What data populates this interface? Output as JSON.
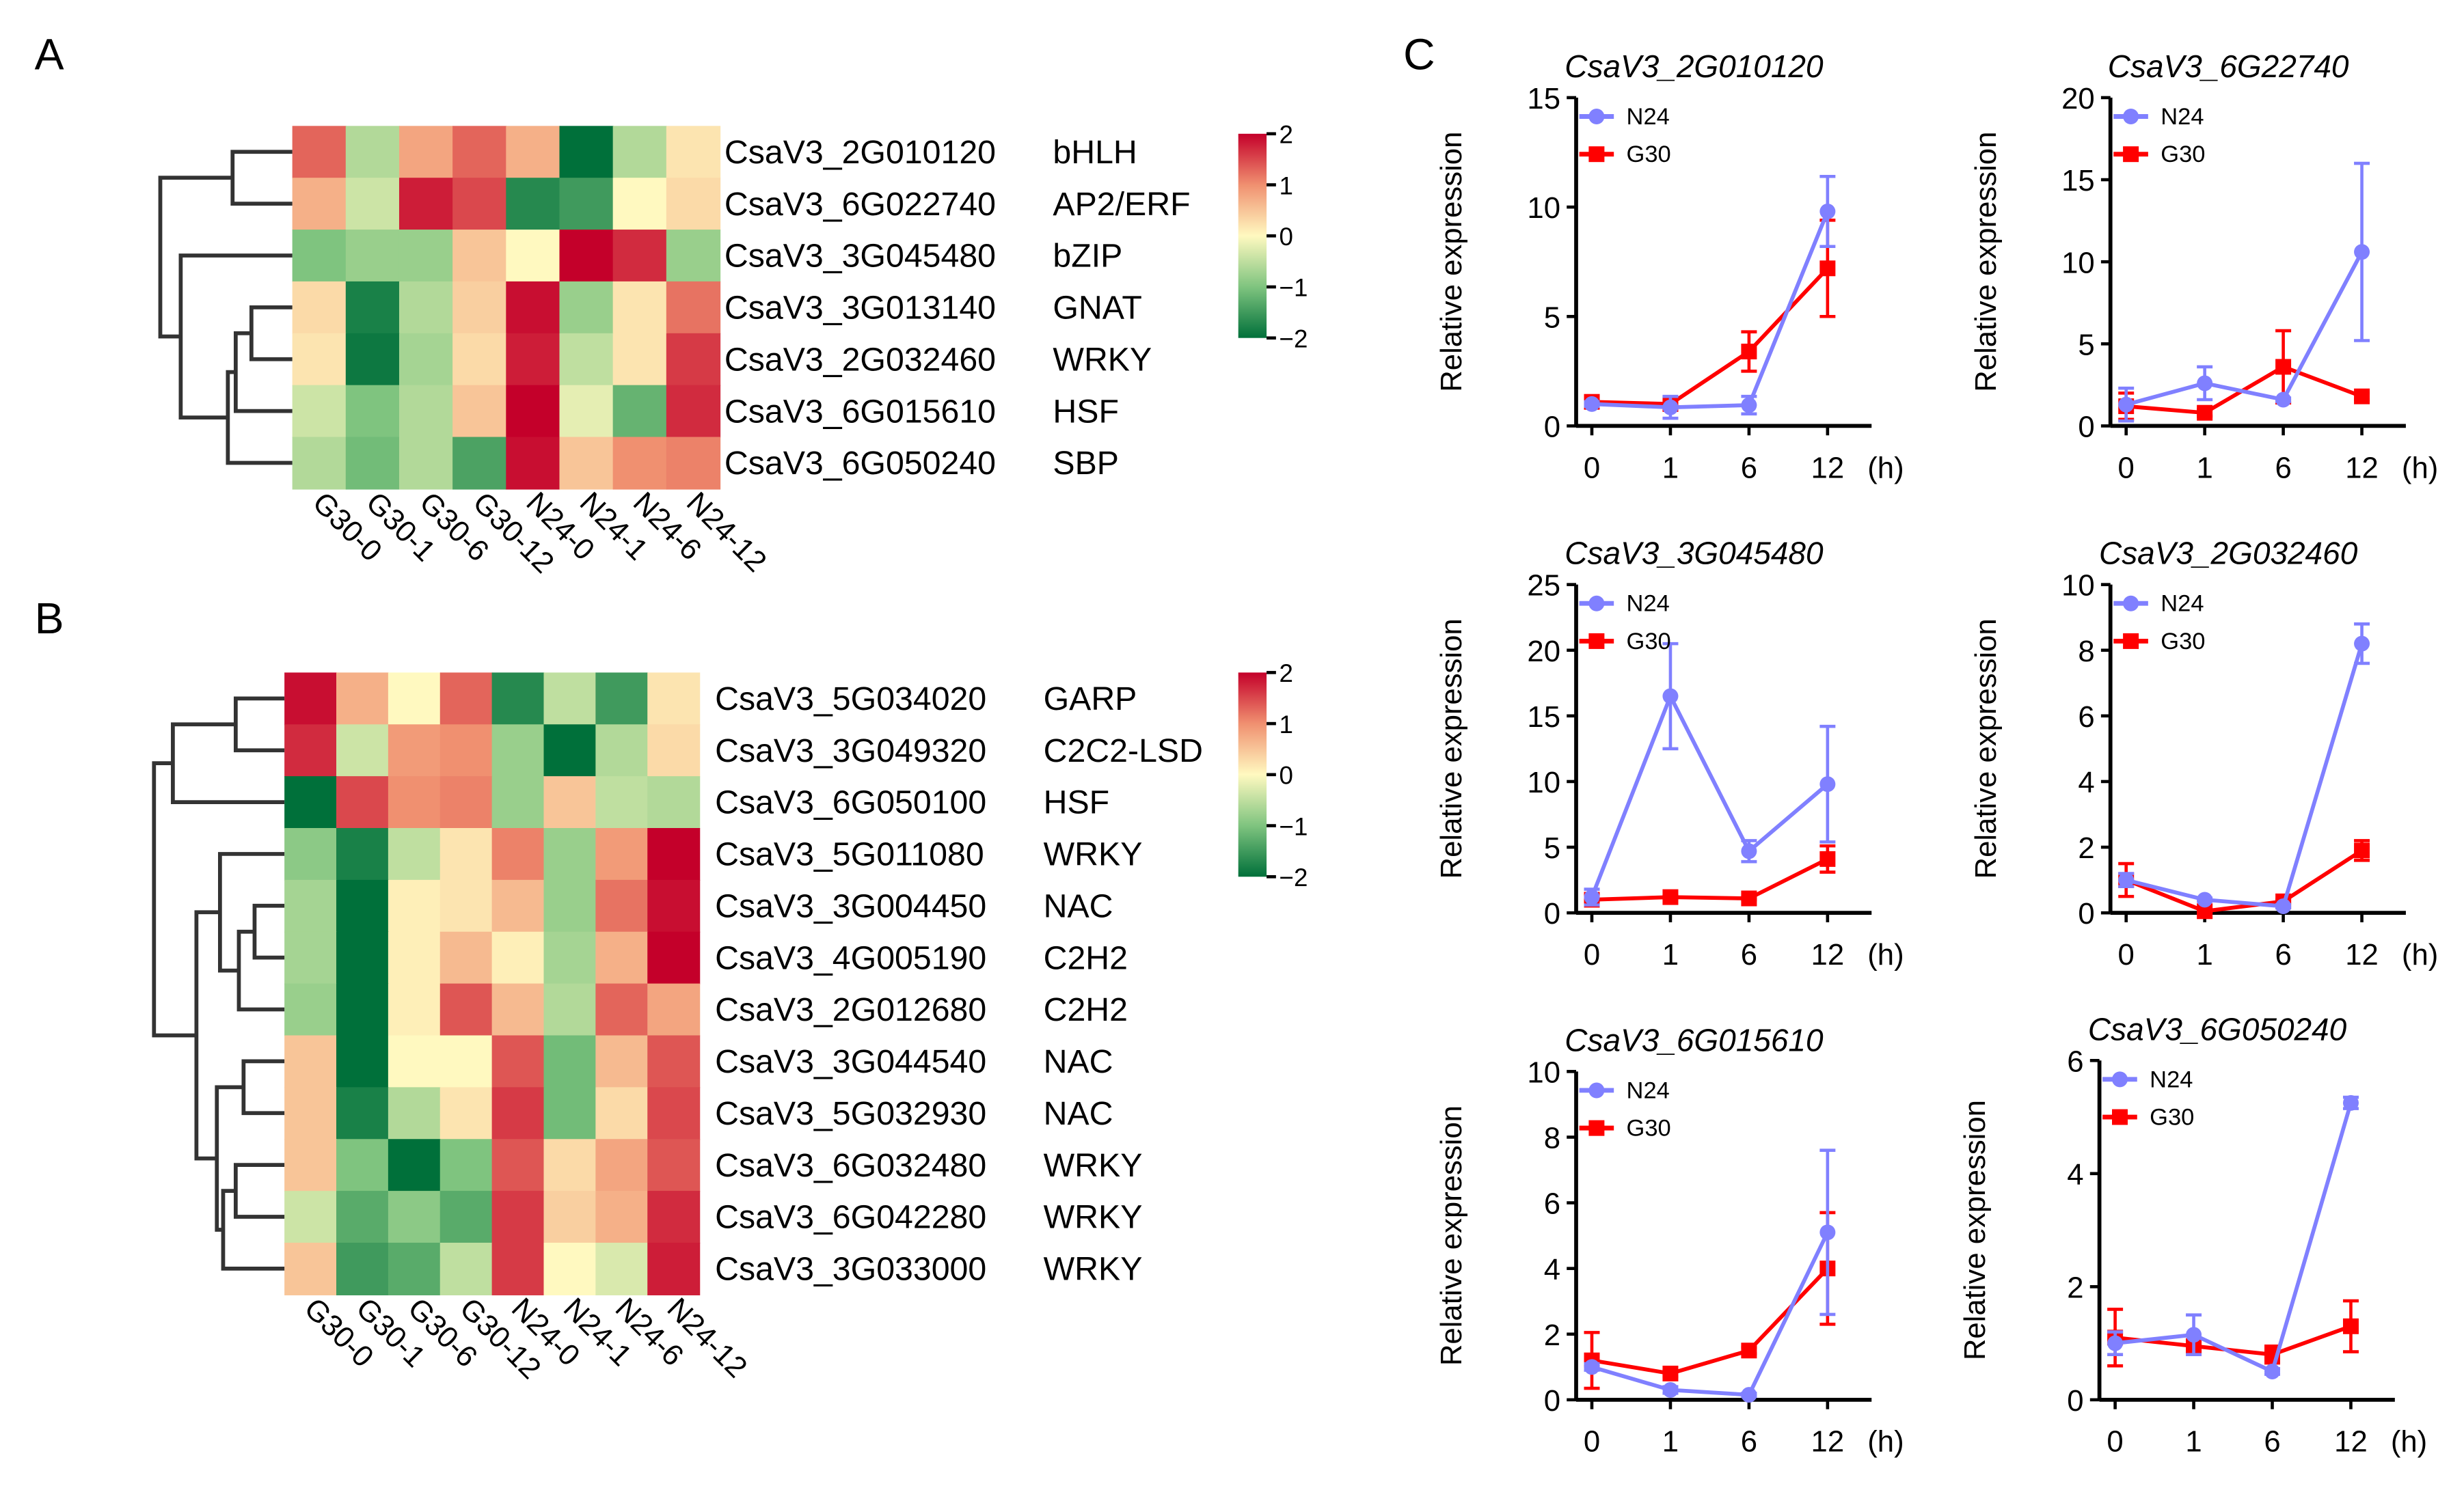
{
  "panels": {
    "a": "A",
    "b": "B",
    "c": "C"
  },
  "colorscale": {
    "ticks": [
      2,
      1,
      0,
      -1,
      -2
    ],
    "low": "#00703a",
    "mid": "#fff9c0",
    "high": "#c4002a"
  },
  "chart_data": [
    {
      "type": "heatmap",
      "panel": "A",
      "columns": [
        "G30-0",
        "G30-1",
        "G30-6",
        "G30-12",
        "N24-0",
        "N24-1",
        "N24-6",
        "N24-12"
      ],
      "rows": [
        {
          "gene": "CsaV3_2G010120",
          "family": "bHLH",
          "values": [
            1.3,
            -0.6,
            0.8,
            1.3,
            0.7,
            -2.1,
            -0.6,
            0.2
          ]
        },
        {
          "gene": "CsaV3_6G022740",
          "family": "AP2/ERF",
          "values": [
            0.7,
            -0.4,
            1.8,
            1.5,
            -1.7,
            -1.5,
            0.0,
            0.3
          ]
        },
        {
          "gene": "CsaV3_3G045480",
          "family": "bZIP",
          "values": [
            -1.0,
            -0.8,
            -0.8,
            0.5,
            0.0,
            2.0,
            1.7,
            -0.8
          ]
        },
        {
          "gene": "CsaV3_3G013140",
          "family": "GNAT",
          "values": [
            0.3,
            -1.8,
            -0.6,
            0.4,
            1.9,
            -0.8,
            0.2,
            1.2
          ]
        },
        {
          "gene": "CsaV3_2G032460",
          "family": "WRKY",
          "values": [
            0.2,
            -1.9,
            -0.7,
            0.3,
            1.8,
            -0.5,
            0.2,
            1.6
          ]
        },
        {
          "gene": "CsaV3_6G015610",
          "family": "HSF",
          "values": [
            -0.4,
            -1.0,
            -0.6,
            0.5,
            2.0,
            -0.2,
            -1.2,
            1.7
          ]
        },
        {
          "gene": "CsaV3_6G050240",
          "family": "SBP",
          "values": [
            -0.6,
            -1.1,
            -0.6,
            -1.4,
            1.9,
            0.5,
            1.0,
            1.1
          ]
        }
      ],
      "scale_range": [
        -2,
        2
      ]
    },
    {
      "type": "heatmap",
      "panel": "B",
      "columns": [
        "G30-0",
        "G30-1",
        "G30-6",
        "G30-12",
        "N24-0",
        "N24-1",
        "N24-6",
        "N24-12"
      ],
      "rows": [
        {
          "gene": "CsaV3_5G034020",
          "family": "GARP",
          "values": [
            1.9,
            0.7,
            0.0,
            1.3,
            -1.7,
            -0.5,
            -1.5,
            0.2
          ]
        },
        {
          "gene": "CsaV3_3G049320",
          "family": "C2C2-LSD",
          "values": [
            1.7,
            -0.4,
            0.9,
            1.0,
            -0.8,
            -2.1,
            -0.6,
            0.3
          ]
        },
        {
          "gene": "CsaV3_6G050100",
          "family": "HSF",
          "values": [
            -2.0,
            1.5,
            1.0,
            1.1,
            -0.8,
            0.5,
            -0.5,
            -0.6
          ]
        },
        {
          "gene": "CsaV3_5G011080",
          "family": "WRKY",
          "values": [
            -0.9,
            -1.8,
            -0.5,
            0.2,
            1.1,
            -0.8,
            0.9,
            2.0
          ]
        },
        {
          "gene": "CsaV3_3G004450",
          "family": "NAC",
          "values": [
            -0.7,
            -2.0,
            0.1,
            0.2,
            0.6,
            -0.8,
            1.2,
            1.9
          ]
        },
        {
          "gene": "CsaV3_4G005190",
          "family": "C2H2",
          "values": [
            -0.7,
            -2.0,
            0.1,
            0.6,
            0.1,
            -0.7,
            0.7,
            2.1
          ]
        },
        {
          "gene": "CsaV3_2G012680",
          "family": "C2H2",
          "values": [
            -0.8,
            -2.2,
            0.1,
            1.4,
            0.6,
            -0.6,
            1.3,
            0.8
          ]
        },
        {
          "gene": "CsaV3_3G044540",
          "family": "NAC",
          "values": [
            0.5,
            -2.1,
            0.0,
            0.0,
            1.4,
            -1.1,
            0.6,
            1.4
          ]
        },
        {
          "gene": "CsaV3_5G032930",
          "family": "NAC",
          "values": [
            0.5,
            -1.8,
            -0.6,
            0.2,
            1.6,
            -1.1,
            0.3,
            1.5
          ]
        },
        {
          "gene": "CsaV3_6G032480",
          "family": "WRKY",
          "values": [
            0.5,
            -1.0,
            -2.0,
            -1.0,
            1.4,
            0.3,
            0.8,
            1.4
          ]
        },
        {
          "gene": "CsaV3_6G042280",
          "family": "WRKY",
          "values": [
            -0.4,
            -1.3,
            -0.9,
            -1.3,
            1.6,
            0.4,
            0.7,
            1.7
          ]
        },
        {
          "gene": "CsaV3_3G033000",
          "family": "WRKY",
          "values": [
            0.5,
            -1.5,
            -1.3,
            -0.5,
            1.6,
            0.0,
            -0.3,
            1.8
          ]
        }
      ],
      "scale_range": [
        -2,
        2
      ]
    },
    {
      "type": "line",
      "panel": "C",
      "title": "CsaV3_2G010120",
      "ylabel": "Relative expression",
      "categories": [
        "0",
        "1",
        "6",
        "12"
      ],
      "x_unit": "(h)",
      "ylim": [
        0,
        15
      ],
      "yticks": [
        0,
        5,
        10,
        15
      ],
      "series": [
        {
          "name": "N24",
          "color": "#8080ff",
          "values": [
            1.0,
            0.85,
            0.95,
            9.8
          ],
          "errors": [
            0.1,
            0.5,
            0.4,
            1.6
          ]
        },
        {
          "name": "G30",
          "color": "#ff0000",
          "values": [
            1.1,
            1.0,
            3.4,
            7.2
          ],
          "errors": [
            0.2,
            0.1,
            0.9,
            2.2
          ]
        }
      ]
    },
    {
      "type": "line",
      "panel": "C",
      "title": "CsaV3_6G22740",
      "ylabel": "Relative expression",
      "categories": [
        "0",
        "1",
        "6",
        "12"
      ],
      "x_unit": "(h)",
      "ylim": [
        0,
        20
      ],
      "yticks": [
        0,
        5,
        10,
        15,
        20
      ],
      "series": [
        {
          "name": "N24",
          "color": "#8080ff",
          "values": [
            1.3,
            2.6,
            1.6,
            10.6
          ],
          "errors": [
            1.0,
            1.0,
            0.1,
            5.4
          ]
        },
        {
          "name": "G30",
          "color": "#ff0000",
          "values": [
            1.2,
            0.8,
            3.6,
            1.8
          ],
          "errors": [
            0.8,
            0.2,
            2.2,
            0.2
          ]
        }
      ]
    },
    {
      "type": "line",
      "panel": "C",
      "title": "CsaV3_3G045480",
      "ylabel": "Relative expression",
      "categories": [
        "0",
        "1",
        "6",
        "12"
      ],
      "x_unit": "(h)",
      "ylim": [
        0,
        25
      ],
      "yticks": [
        0,
        5,
        10,
        15,
        20,
        25
      ],
      "series": [
        {
          "name": "N24",
          "color": "#8080ff",
          "values": [
            1.2,
            16.5,
            4.7,
            9.8
          ],
          "errors": [
            0.6,
            4.0,
            0.8,
            4.4
          ]
        },
        {
          "name": "G30",
          "color": "#ff0000",
          "values": [
            1.0,
            1.2,
            1.1,
            4.1
          ],
          "errors": [
            0.1,
            0.1,
            0.1,
            1.0
          ]
        }
      ]
    },
    {
      "type": "line",
      "panel": "C",
      "title": "CsaV3_2G032460",
      "ylabel": "Relative expression",
      "categories": [
        "0",
        "1",
        "6",
        "12"
      ],
      "x_unit": "(h)",
      "ylim": [
        0,
        10
      ],
      "yticks": [
        0,
        2,
        4,
        6,
        8,
        10
      ],
      "series": [
        {
          "name": "N24",
          "color": "#8080ff",
          "values": [
            1.0,
            0.4,
            0.2,
            8.2
          ],
          "errors": [
            0.2,
            0.05,
            0.05,
            0.6
          ]
        },
        {
          "name": "G30",
          "color": "#ff0000",
          "values": [
            1.0,
            0.05,
            0.35,
            1.9
          ],
          "errors": [
            0.5,
            0.05,
            0.05,
            0.3
          ]
        }
      ]
    },
    {
      "type": "line",
      "panel": "C",
      "title": "CsaV3_6G015610",
      "ylabel": "Relative expression",
      "categories": [
        "0",
        "1",
        "6",
        "12"
      ],
      "x_unit": "(h)",
      "ylim": [
        0,
        10
      ],
      "yticks": [
        0,
        2,
        4,
        6,
        8,
        10
      ],
      "series": [
        {
          "name": "N24",
          "color": "#8080ff",
          "values": [
            1.0,
            0.3,
            0.15,
            5.1
          ],
          "errors": [
            0.1,
            0.1,
            0.05,
            2.5
          ]
        },
        {
          "name": "G30",
          "color": "#ff0000",
          "values": [
            1.2,
            0.8,
            1.5,
            4.0
          ],
          "errors": [
            0.85,
            0.1,
            0.1,
            1.7
          ]
        }
      ]
    },
    {
      "type": "line",
      "panel": "C",
      "title": "CsaV3_6G050240",
      "ylabel": "Relative expression",
      "categories": [
        "0",
        "1",
        "6",
        "12"
      ],
      "x_unit": "(h)",
      "ylim": [
        0,
        6
      ],
      "yticks": [
        0,
        2,
        4,
        6
      ],
      "series": [
        {
          "name": "N24",
          "color": "#8080ff",
          "values": [
            1.0,
            1.15,
            0.5,
            5.25
          ],
          "errors": [
            0.2,
            0.35,
            0.05,
            0.1
          ]
        },
        {
          "name": "G30",
          "color": "#ff0000",
          "values": [
            1.1,
            0.95,
            0.8,
            1.3
          ],
          "errors": [
            0.5,
            0.1,
            0.15,
            0.45
          ]
        }
      ]
    }
  ]
}
